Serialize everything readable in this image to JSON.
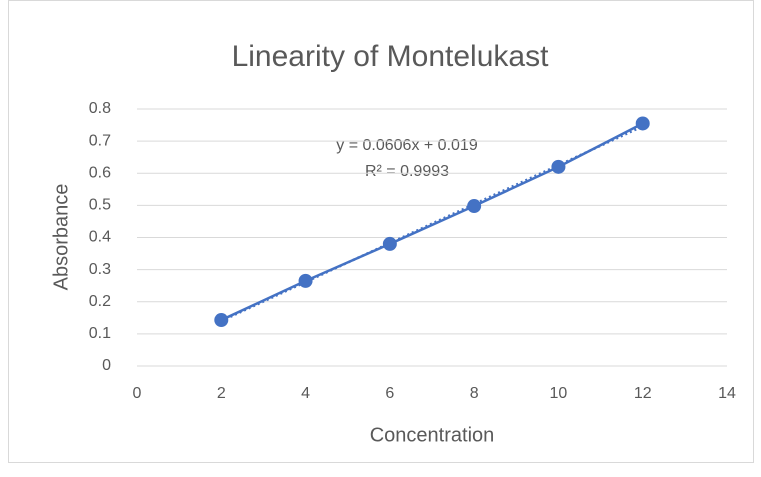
{
  "chart_data": {
    "type": "scatter",
    "title": "Linearity of Montelukast",
    "x_label": "Concentration",
    "y_label": "Absorbance",
    "series": [
      {
        "name": "Absorbance",
        "color": "#4472c4",
        "x": [
          2,
          4,
          6,
          8,
          10,
          12
        ],
        "values": [
          0.143,
          0.265,
          0.38,
          0.498,
          0.62,
          0.755
        ]
      }
    ],
    "trendline": {
      "slope": 0.0606,
      "intercept": 0.019,
      "label": "y = 0.0606x + 0.019",
      "r2_label": "R² = 0.9993"
    },
    "xlim": [
      0,
      14
    ],
    "xticks": [
      0,
      2,
      4,
      6,
      8,
      10,
      12,
      14
    ],
    "ylim": [
      0,
      0.8
    ],
    "yticks": [
      0,
      0.1,
      0.2,
      0.3,
      0.4,
      0.5,
      0.6,
      0.7,
      0.8
    ],
    "grid": true
  }
}
